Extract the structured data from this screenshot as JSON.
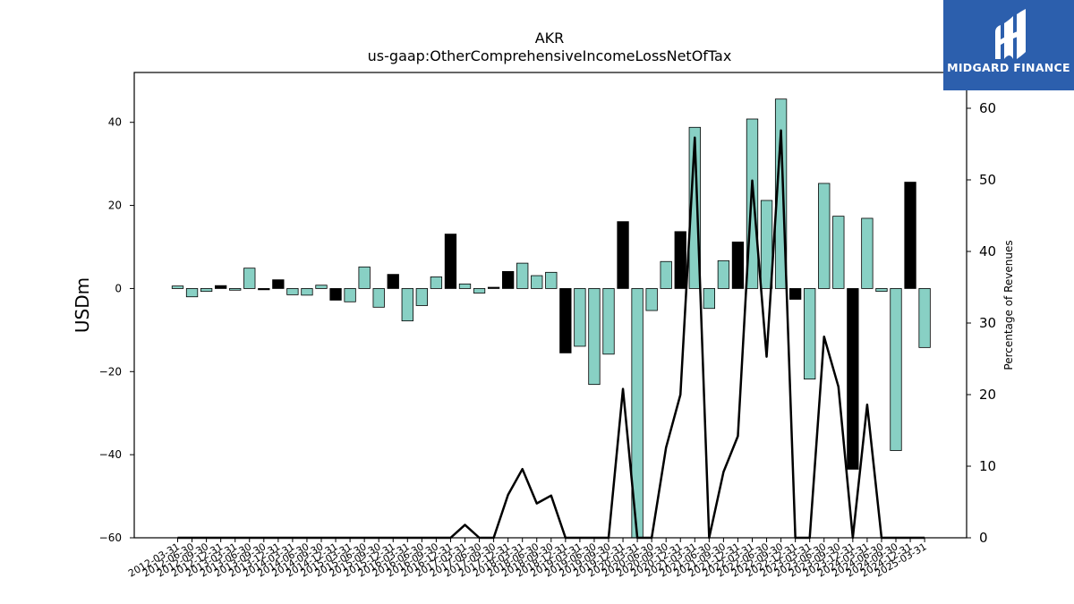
{
  "chart_data": {
    "type": "bar",
    "title": "AKR",
    "subtitle": "us-gaap:OtherComprehensiveIncomeLossNetOfTax",
    "ylabel": "USDm",
    "y2label": "Percentage of Revenues",
    "ylim": [
      -60,
      52
    ],
    "y2lim": [
      0,
      65
    ],
    "yticks": [
      -60,
      -40,
      -20,
      0,
      20,
      40
    ],
    "y2ticks": [
      0,
      10,
      20,
      30,
      40,
      50,
      60
    ],
    "grid": false,
    "categories": [
      "2012-03-31",
      "2012-06-30",
      "2012-09-30",
      "2012-12-31",
      "2013-03-31",
      "2013-06-30",
      "2013-09-30",
      "2013-12-31",
      "2014-03-31",
      "2014-06-30",
      "2014-09-30",
      "2014-12-31",
      "2015-03-31",
      "2015-06-30",
      "2015-09-30",
      "2015-12-31",
      "2016-03-31",
      "2016-06-30",
      "2016-09-30",
      "2016-12-31",
      "2017-03-31",
      "2017-06-30",
      "2017-09-30",
      "2017-12-31",
      "2018-03-31",
      "2018-06-30",
      "2018-09-30",
      "2018-12-31",
      "2019-03-31",
      "2019-06-30",
      "2019-09-30",
      "2019-12-31",
      "2020-03-31",
      "2020-06-30",
      "2020-09-30",
      "2020-12-31",
      "2021-03-31",
      "2021-06-30",
      "2021-09-30",
      "2021-12-31",
      "2022-03-31",
      "2022-06-30",
      "2022-09-30",
      "2022-12-31",
      "2023-03-31",
      "2023-06-30",
      "2023-09-30",
      "2023-12-31",
      "2024-03-31",
      "2024-06-30",
      "2024-09-30",
      "2024-12-31",
      "2025-03-31"
    ],
    "series": [
      {
        "kind": "bar",
        "values": [
          0.6,
          -2,
          -0.7,
          0.7,
          -0.4,
          4.9,
          -0.3,
          2.1,
          -1.5,
          -1.6,
          0.8,
          -2.8,
          -3.2,
          5.2,
          -4.5,
          3.4,
          -7.8,
          -4.1,
          2.8,
          13.1,
          1.1,
          -1.1,
          0.3,
          4.1,
          6.1,
          3.1,
          3.9,
          -15.5,
          -13.9,
          -23.1,
          -15.8,
          16.1,
          -60,
          -5.3,
          6.5,
          13.7,
          38.8,
          -4.8,
          6.7,
          11.2,
          40.8,
          21.2,
          45.6,
          -2.6,
          -21.8,
          25.3,
          17.4,
          -43.5,
          16.9,
          -0.7,
          -39,
          25.6,
          -14.2
        ],
        "colors": [
          "teal",
          "teal",
          "teal",
          "black",
          "teal",
          "teal",
          "black",
          "black",
          "teal",
          "teal",
          "teal",
          "black",
          "teal",
          "teal",
          "teal",
          "black",
          "teal",
          "teal",
          "teal",
          "black",
          "teal",
          "teal",
          "black",
          "black",
          "teal",
          "teal",
          "teal",
          "black",
          "teal",
          "teal",
          "teal",
          "black",
          "teal",
          "teal",
          "teal",
          "black",
          "teal",
          "teal",
          "teal",
          "black",
          "teal",
          "teal",
          "teal",
          "black",
          "teal",
          "teal",
          "teal",
          "black",
          "teal",
          "teal",
          "teal",
          "black",
          "teal"
        ]
      },
      {
        "kind": "line",
        "axis": "right",
        "values": [
          0,
          0,
          0,
          0,
          0,
          0,
          0,
          0,
          0,
          0,
          0,
          0,
          0,
          0,
          0,
          0,
          0,
          0,
          0,
          0,
          1.8,
          0,
          0,
          6,
          9.6,
          4.8,
          5.9,
          0,
          0,
          0,
          0,
          20.8,
          0,
          0,
          12.6,
          20,
          55.9,
          0,
          9.2,
          14.2,
          49.9,
          25.3,
          56.9,
          0,
          0,
          28.1,
          21.1,
          0,
          18.6,
          0,
          0,
          0,
          0
        ]
      }
    ]
  },
  "colors": {
    "teal": "#88d0c4",
    "black": "#000000",
    "line": "#000000",
    "logo_bg": "#2c5fad"
  },
  "logo": {
    "text": "MIDGARD FINANCE",
    "icon": "midgard-logo-icon"
  }
}
